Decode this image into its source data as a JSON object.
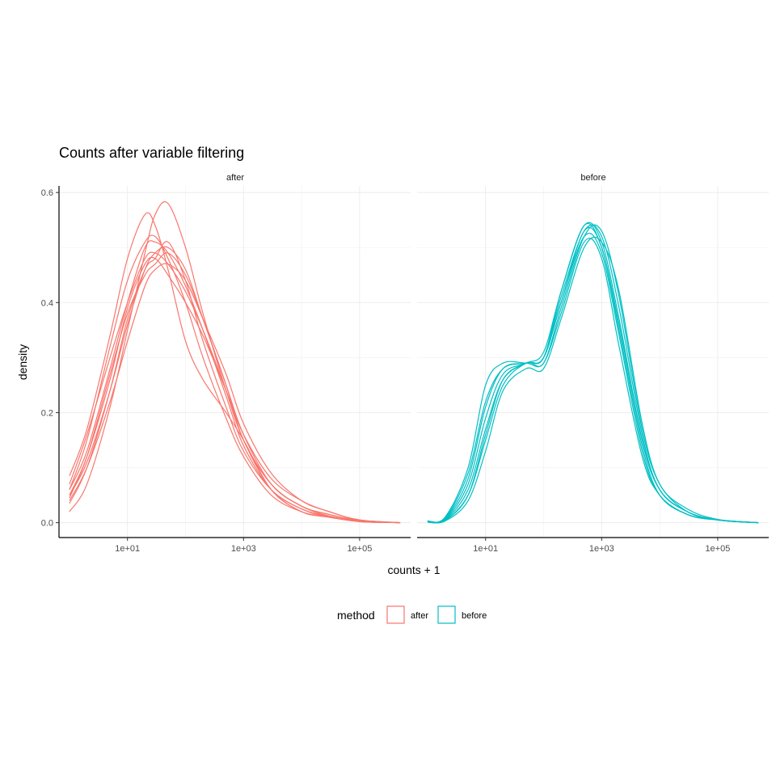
{
  "chart_data": {
    "type": "line",
    "title": "Counts after variable filtering",
    "xlabel": "counts + 1",
    "ylabel": "density",
    "x_scale": "log10",
    "xlim": [
      1,
      500000
    ],
    "ylim": [
      0,
      0.6
    ],
    "x_ticks": [
      10,
      1000,
      100000
    ],
    "x_tick_labels": [
      "1e+01",
      "1e+03",
      "1e+05"
    ],
    "y_ticks": [
      0,
      0.2,
      0.4,
      0.6
    ],
    "y_tick_labels": [
      "0.0",
      "0.2",
      "0.4",
      "0.6"
    ],
    "grid": true,
    "legend": {
      "title": "method",
      "position": "bottom",
      "entries": [
        {
          "label": "after",
          "color": "#F8766D"
        },
        {
          "label": "before",
          "color": "#00BFC4"
        }
      ]
    },
    "panels": [
      {
        "strip": "after",
        "color": "#F8766D",
        "series": [
          {
            "x": [
              1,
              2,
              5,
              10,
              20,
              30,
              50,
              100,
              200,
              500,
              1000,
              3000,
              10000,
              30000,
              100000,
              500000
            ],
            "y": [
              0.02,
              0.07,
              0.21,
              0.35,
              0.49,
              0.56,
              0.58,
              0.5,
              0.38,
              0.24,
              0.15,
              0.06,
              0.02,
              0.01,
              0.002,
              0.0
            ]
          },
          {
            "x": [
              1,
              2,
              5,
              10,
              20,
              30,
              50,
              100,
              200,
              500,
              1000,
              3000,
              10000,
              30000,
              100000,
              500000
            ],
            "y": [
              0.085,
              0.17,
              0.34,
              0.48,
              0.56,
              0.54,
              0.46,
              0.33,
              0.26,
              0.2,
              0.15,
              0.06,
              0.02,
              0.01,
              0.002,
              0.0
            ]
          },
          {
            "x": [
              1,
              2,
              5,
              10,
              20,
              30,
              50,
              100,
              200,
              500,
              1000,
              3000,
              10000,
              30000,
              100000,
              500000
            ],
            "y": [
              0.06,
              0.15,
              0.32,
              0.44,
              0.51,
              0.52,
              0.48,
              0.4,
              0.3,
              0.19,
              0.12,
              0.05,
              0.02,
              0.01,
              0.002,
              0.0
            ]
          },
          {
            "x": [
              1,
              2,
              5,
              10,
              20,
              30,
              50,
              100,
              200,
              500,
              1000,
              3000,
              10000,
              30000,
              100000,
              500000
            ],
            "y": [
              0.05,
              0.12,
              0.26,
              0.39,
              0.47,
              0.48,
              0.45,
              0.4,
              0.34,
              0.24,
              0.16,
              0.08,
              0.04,
              0.02,
              0.005,
              0.0
            ]
          },
          {
            "x": [
              1,
              2,
              5,
              10,
              20,
              30,
              50,
              100,
              200,
              500,
              1000,
              3000,
              10000,
              30000,
              100000,
              500000
            ],
            "y": [
              0.04,
              0.1,
              0.22,
              0.33,
              0.43,
              0.46,
              0.47,
              0.44,
              0.37,
              0.27,
              0.18,
              0.09,
              0.04,
              0.02,
              0.005,
              0.0
            ]
          },
          {
            "x": [
              1,
              2,
              5,
              10,
              20,
              30,
              50,
              100,
              200,
              500,
              1000,
              3000,
              10000,
              30000,
              100000,
              500000
            ],
            "y": [
              0.07,
              0.16,
              0.3,
              0.4,
              0.48,
              0.49,
              0.47,
              0.42,
              0.35,
              0.24,
              0.15,
              0.07,
              0.03,
              0.015,
              0.004,
              0.0
            ]
          },
          {
            "x": [
              1,
              2,
              5,
              10,
              20,
              30,
              50,
              100,
              200,
              500,
              1000,
              3000,
              10000,
              30000,
              100000,
              500000
            ],
            "y": [
              0.035,
              0.1,
              0.24,
              0.37,
              0.46,
              0.48,
              0.51,
              0.44,
              0.33,
              0.21,
              0.13,
              0.06,
              0.025,
              0.012,
              0.003,
              0.0
            ]
          },
          {
            "x": [
              1,
              2,
              5,
              10,
              20,
              30,
              50,
              100,
              200,
              500,
              1000,
              3000,
              10000,
              30000,
              100000,
              500000
            ],
            "y": [
              0.05,
              0.11,
              0.24,
              0.36,
              0.46,
              0.49,
              0.5,
              0.46,
              0.37,
              0.25,
              0.16,
              0.07,
              0.03,
              0.012,
              0.003,
              0.0
            ]
          },
          {
            "x": [
              1,
              2,
              5,
              10,
              20,
              30,
              50,
              100,
              200,
              500,
              1000,
              3000,
              10000,
              30000,
              100000,
              500000
            ],
            "y": [
              0.06,
              0.13,
              0.28,
              0.4,
              0.5,
              0.51,
              0.49,
              0.43,
              0.35,
              0.23,
              0.14,
              0.06,
              0.025,
              0.01,
              0.003,
              0.0
            ]
          },
          {
            "x": [
              1,
              2,
              5,
              10,
              20,
              30,
              50,
              100,
              200,
              500,
              1000,
              3000,
              10000,
              30000,
              100000,
              500000
            ],
            "y": [
              0.045,
              0.12,
              0.27,
              0.38,
              0.45,
              0.47,
              0.49,
              0.45,
              0.37,
              0.25,
              0.15,
              0.07,
              0.03,
              0.015,
              0.004,
              0.0
            ]
          }
        ]
      },
      {
        "strip": "before",
        "color": "#00BFC4",
        "series": [
          {
            "x": [
              1,
              2,
              5,
              10,
              20,
              50,
              100,
              200,
              500,
              1000,
              2000,
              5000,
              10000,
              30000,
              100000,
              500000
            ],
            "y": [
              0.003,
              0.01,
              0.1,
              0.25,
              0.29,
              0.29,
              0.29,
              0.38,
              0.51,
              0.48,
              0.32,
              0.12,
              0.05,
              0.015,
              0.005,
              0.0
            ]
          },
          {
            "x": [
              1,
              2,
              5,
              10,
              20,
              50,
              100,
              200,
              500,
              1000,
              2000,
              5000,
              10000,
              30000,
              100000,
              500000
            ],
            "y": [
              0.002,
              0.008,
              0.09,
              0.22,
              0.28,
              0.29,
              0.3,
              0.4,
              0.53,
              0.5,
              0.35,
              0.14,
              0.05,
              0.015,
              0.005,
              0.0
            ]
          },
          {
            "x": [
              1,
              2,
              5,
              10,
              20,
              50,
              100,
              200,
              500,
              1000,
              2000,
              5000,
              10000,
              30000,
              100000,
              500000
            ],
            "y": [
              0.002,
              0.006,
              0.07,
              0.19,
              0.27,
              0.29,
              0.31,
              0.42,
              0.54,
              0.51,
              0.37,
              0.15,
              0.06,
              0.02,
              0.005,
              0.0
            ]
          },
          {
            "x": [
              1,
              2,
              5,
              10,
              20,
              50,
              100,
              200,
              500,
              1000,
              2000,
              5000,
              10000,
              30000,
              100000,
              500000
            ],
            "y": [
              0.001,
              0.005,
              0.06,
              0.17,
              0.26,
              0.29,
              0.3,
              0.41,
              0.53,
              0.52,
              0.39,
              0.16,
              0.06,
              0.02,
              0.005,
              0.0
            ]
          },
          {
            "x": [
              1,
              2,
              5,
              10,
              20,
              50,
              100,
              200,
              500,
              1000,
              2000,
              5000,
              10000,
              30000,
              100000,
              500000
            ],
            "y": [
              0.001,
              0.004,
              0.05,
              0.15,
              0.25,
              0.29,
              0.29,
              0.39,
              0.52,
              0.53,
              0.41,
              0.17,
              0.07,
              0.02,
              0.005,
              0.0
            ]
          },
          {
            "x": [
              1,
              2,
              5,
              10,
              20,
              50,
              100,
              200,
              500,
              1000,
              2000,
              5000,
              10000,
              30000,
              100000,
              500000
            ],
            "y": [
              0.001,
              0.003,
              0.04,
              0.13,
              0.24,
              0.28,
              0.28,
              0.37,
              0.5,
              0.51,
              0.42,
              0.18,
              0.07,
              0.025,
              0.006,
              0.0
            ]
          },
          {
            "x": [
              1,
              2,
              5,
              10,
              20,
              50,
              100,
              200,
              500,
              1000,
              2000,
              5000,
              10000,
              30000,
              100000,
              500000
            ],
            "y": [
              0.002,
              0.007,
              0.08,
              0.21,
              0.28,
              0.29,
              0.3,
              0.4,
              0.52,
              0.49,
              0.34,
              0.13,
              0.05,
              0.015,
              0.005,
              0.0
            ]
          },
          {
            "x": [
              1,
              2,
              5,
              10,
              20,
              50,
              100,
              200,
              500,
              1000,
              2000,
              5000,
              10000,
              30000,
              100000,
              500000
            ],
            "y": [
              0.001,
              0.004,
              0.05,
              0.16,
              0.26,
              0.29,
              0.3,
              0.42,
              0.54,
              0.5,
              0.36,
              0.15,
              0.06,
              0.02,
              0.005,
              0.0
            ]
          }
        ]
      }
    ]
  }
}
